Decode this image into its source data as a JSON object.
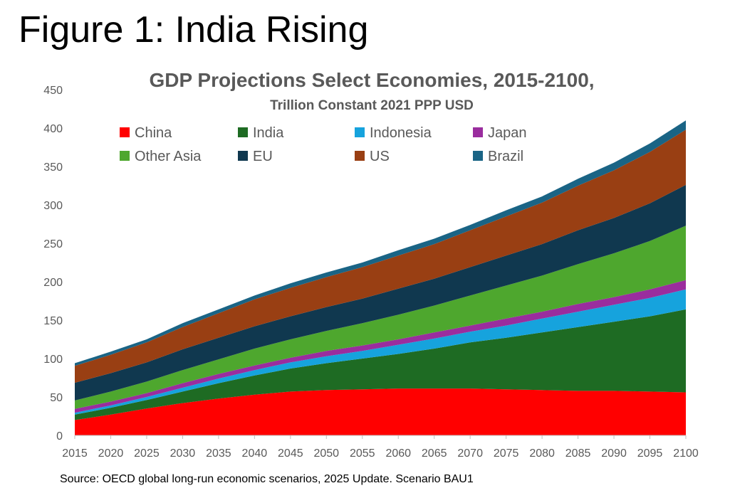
{
  "figure_title": "Figure 1: India Rising",
  "source": "Source: OECD global long-run economic scenarios, 2025 Update. Scenario BAU1",
  "chart_data": {
    "type": "area",
    "stacked": true,
    "title": "GDP Projections Select Economies, 2015-2100,",
    "subtitle": "Trillion Constant 2021 PPP USD",
    "xlabel": "",
    "ylabel": "",
    "ylim": [
      0,
      450
    ],
    "yticks": [
      0,
      50,
      100,
      150,
      200,
      250,
      300,
      350,
      400,
      450
    ],
    "xticks": [
      2015,
      2020,
      2025,
      2030,
      2035,
      2040,
      2045,
      2050,
      2055,
      2060,
      2065,
      2070,
      2075,
      2080,
      2085,
      2090,
      2095,
      2100
    ],
    "grid": false,
    "legend": "top-left, inside plot, 4 columns",
    "x": [
      2015,
      2020,
      2025,
      2030,
      2035,
      2040,
      2045,
      2050,
      2055,
      2060,
      2065,
      2070,
      2075,
      2080,
      2085,
      2090,
      2095,
      2100
    ],
    "series": [
      {
        "name": "China",
        "color": "#ff0000",
        "values": [
          20,
          27,
          35,
          42,
          48,
          53,
          57,
          59,
          60,
          61,
          61,
          61,
          60,
          59,
          58,
          58,
          57,
          56
        ]
      },
      {
        "name": "India",
        "color": "#1e6b23",
        "values": [
          7,
          9,
          11,
          15,
          20,
          25,
          30,
          35,
          40,
          45,
          52,
          60,
          67,
          75,
          83,
          90,
          98,
          108
        ]
      },
      {
        "name": "Indonesia",
        "color": "#16a3dd",
        "values": [
          2.5,
          3,
          4,
          5,
          6,
          7,
          8,
          9,
          10,
          12,
          13,
          14,
          16,
          18,
          20,
          22,
          24,
          26
        ]
      },
      {
        "name": "Japan",
        "color": "#9a2d9e",
        "values": [
          5,
          5,
          5,
          6,
          6,
          6,
          6,
          7,
          7,
          7,
          8,
          8,
          9,
          9,
          10,
          10,
          11,
          12
        ]
      },
      {
        "name": "Other Asia",
        "color": "#4ea72e",
        "values": [
          11,
          13,
          15,
          17,
          19,
          22,
          24,
          26,
          29,
          32,
          35,
          39,
          43,
          47,
          52,
          57,
          63,
          71
        ]
      },
      {
        "name": "EU",
        "color": "#10384f",
        "values": [
          23,
          24,
          25,
          27,
          28,
          29,
          30,
          31,
          32,
          34,
          35,
          37,
          39,
          41,
          44,
          46,
          49,
          53
        ]
      },
      {
        "name": "US",
        "color": "#993f13",
        "values": [
          22,
          24,
          26,
          29,
          32,
          35,
          37,
          39,
          41,
          43,
          45,
          48,
          51,
          54,
          58,
          62,
          67,
          72
        ]
      },
      {
        "name": "Brazil",
        "color": "#1a6485",
        "values": [
          3.5,
          4,
          4,
          5,
          5,
          5,
          6,
          6,
          6,
          7,
          7,
          7,
          8,
          8,
          9,
          10,
          11,
          12
        ]
      }
    ]
  }
}
